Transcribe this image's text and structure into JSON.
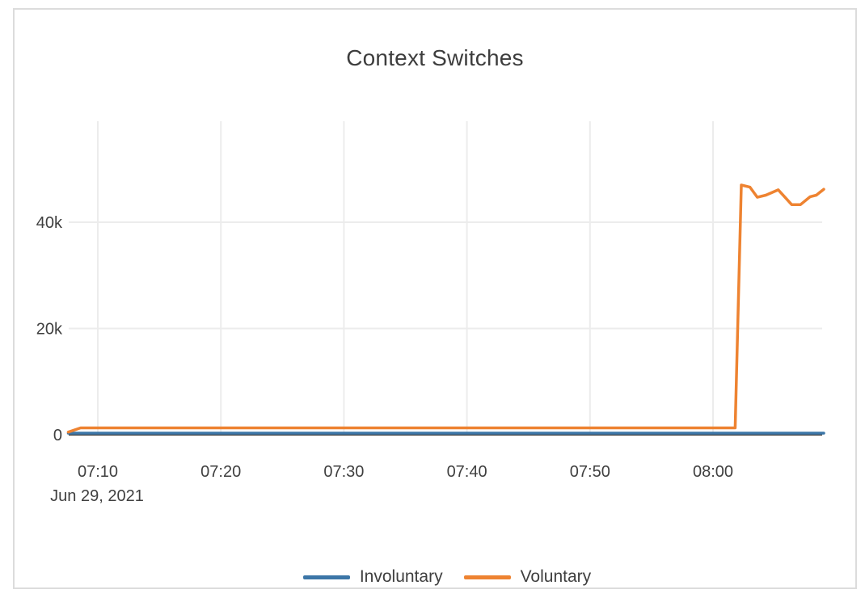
{
  "window": {
    "background": "#ffffff",
    "card_border_color": "#dcdcdc"
  },
  "chart_data": {
    "type": "line",
    "title": "Context Switches",
    "grid": true,
    "legend_position": "bottom-center",
    "colors": {
      "axis_text": "#3f3f3f",
      "gridline": "#ececec",
      "zeroline": "#444444"
    },
    "x_axis": {
      "label": "",
      "unit": "time (HH:MM)",
      "date_label": "Jun 29, 2021",
      "range_minutes_after_0700": [
        7.6,
        69.0
      ],
      "tick_minutes_after_0700": [
        10,
        20,
        30,
        40,
        50,
        60
      ],
      "tick_labels": [
        "07:10",
        "07:20",
        "07:30",
        "07:40",
        "07:50",
        "08:00"
      ]
    },
    "y_axis": {
      "label": "",
      "range": [
        0,
        59000
      ],
      "ticks": [
        0,
        20000,
        40000
      ],
      "tick_labels": [
        "0",
        "20k",
        "40k"
      ]
    },
    "series": [
      {
        "name": "Involuntary",
        "color": "#3c76a7",
        "points": [
          [
            7.6,
            300
          ],
          [
            69.0,
            300
          ]
        ]
      },
      {
        "name": "Voluntary",
        "color": "#ee8331",
        "points": [
          [
            7.6,
            500
          ],
          [
            8.6,
            1300
          ],
          [
            61.8,
            1300
          ],
          [
            62.3,
            47000
          ],
          [
            63.0,
            46600
          ],
          [
            63.6,
            44700
          ],
          [
            64.3,
            45100
          ],
          [
            65.3,
            46100
          ],
          [
            66.4,
            43300
          ],
          [
            67.1,
            43300
          ],
          [
            67.9,
            44800
          ],
          [
            68.4,
            45100
          ],
          [
            69.0,
            46200
          ]
        ]
      }
    ]
  }
}
